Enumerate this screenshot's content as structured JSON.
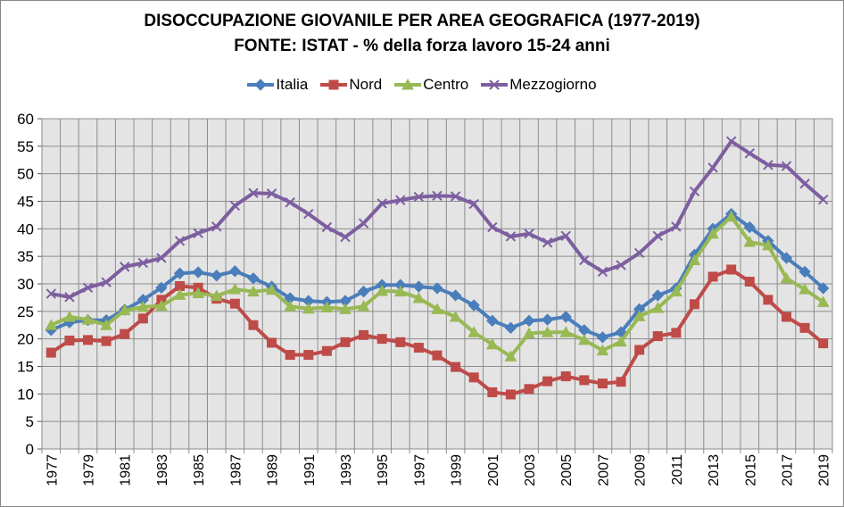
{
  "chart_data": {
    "type": "line",
    "title": "DISOCCUPAZIONE GIOVANILE PER AREA GEOGRAFICA (1977-2019)",
    "subtitle": "FONTE: ISTAT - % della forza lavoro 15-24 anni",
    "xlabel": "",
    "ylabel": "",
    "ylim": [
      0,
      60
    ],
    "yticks": [
      0,
      5,
      10,
      15,
      20,
      25,
      30,
      35,
      40,
      45,
      50,
      55,
      60
    ],
    "xtick_labels": [
      "1977",
      "1979",
      "1981",
      "1983",
      "1985",
      "1987",
      "1989",
      "1991",
      "1993",
      "1995",
      "1997",
      "1999",
      "2001",
      "2003",
      "2005",
      "2007",
      "2009",
      "2011",
      "2013",
      "2015",
      "2017",
      "2019"
    ],
    "grid": true,
    "legend_position": "top",
    "x": [
      1977,
      1978,
      1979,
      1980,
      1981,
      1982,
      1983,
      1984,
      1985,
      1986,
      1987,
      1988,
      1989,
      1990,
      1991,
      1992,
      1993,
      1994,
      1995,
      1996,
      1997,
      1998,
      1999,
      2000,
      2001,
      2002,
      2003,
      2004,
      2005,
      2006,
      2007,
      2008,
      2009,
      2010,
      2011,
      2012,
      2013,
      2014,
      2015,
      2016,
      2017,
      2018,
      2019
    ],
    "series": [
      {
        "name": "Italia",
        "color": "#4a7ebb",
        "marker": "diamond",
        "values": [
          21.6,
          23.0,
          23.4,
          23.4,
          25.3,
          27.1,
          29.3,
          31.9,
          32.1,
          31.5,
          32.3,
          31.0,
          29.5,
          27.4,
          26.9,
          26.7,
          26.9,
          28.6,
          29.8,
          29.8,
          29.5,
          29.2,
          27.9,
          26.1,
          23.3,
          22.0,
          23.3,
          23.5,
          24.0,
          21.6,
          20.3,
          21.2,
          25.4,
          27.9,
          29.2,
          35.3,
          40.0,
          42.7,
          40.3,
          37.8,
          34.7,
          32.2,
          29.2
        ]
      },
      {
        "name": "Nord",
        "color": "#be4b48",
        "marker": "square",
        "values": [
          17.5,
          19.7,
          19.8,
          19.6,
          20.9,
          23.7,
          27.1,
          29.6,
          29.3,
          27.3,
          26.4,
          22.5,
          19.3,
          17.1,
          17.1,
          17.8,
          19.4,
          20.7,
          20.0,
          19.4,
          18.4,
          17.0,
          14.9,
          13.0,
          10.3,
          9.9,
          10.9,
          12.3,
          13.2,
          12.5,
          11.9,
          12.2,
          18.0,
          20.5,
          21.1,
          26.3,
          31.3,
          32.6,
          30.4,
          27.1,
          24.0,
          22.0,
          19.2
        ]
      },
      {
        "name": "Centro",
        "color": "#98b954",
        "marker": "triangle",
        "values": [
          22.5,
          24.0,
          23.5,
          22.5,
          25.2,
          25.8,
          26.0,
          28.0,
          28.3,
          27.8,
          29.0,
          28.6,
          28.9,
          25.9,
          25.5,
          25.7,
          25.4,
          25.9,
          28.7,
          28.6,
          27.4,
          25.4,
          24.0,
          21.2,
          19.0,
          16.8,
          21.0,
          21.2,
          21.2,
          19.8,
          17.9,
          19.5,
          24.1,
          25.6,
          28.6,
          34.3,
          39.1,
          42.2,
          37.6,
          37.0,
          31.0,
          29.0,
          26.7
        ]
      },
      {
        "name": "Mezzogiorno",
        "color": "#7d5fa0",
        "marker": "x",
        "values": [
          28.2,
          27.6,
          29.3,
          30.3,
          33.1,
          33.8,
          34.7,
          37.8,
          39.2,
          40.4,
          44.2,
          46.5,
          46.4,
          44.8,
          42.7,
          40.3,
          38.5,
          41.0,
          44.6,
          45.2,
          45.8,
          46.0,
          45.9,
          44.5,
          40.3,
          38.6,
          39.1,
          37.5,
          38.7,
          34.3,
          32.2,
          33.4,
          35.6,
          38.7,
          40.4,
          46.8,
          51.1,
          55.9,
          53.7,
          51.6,
          51.4,
          48.2,
          45.3
        ]
      }
    ]
  },
  "colors": {
    "plot_background": "#e4e4e4",
    "grid": "#8c8c8c",
    "frame": "#888888"
  }
}
